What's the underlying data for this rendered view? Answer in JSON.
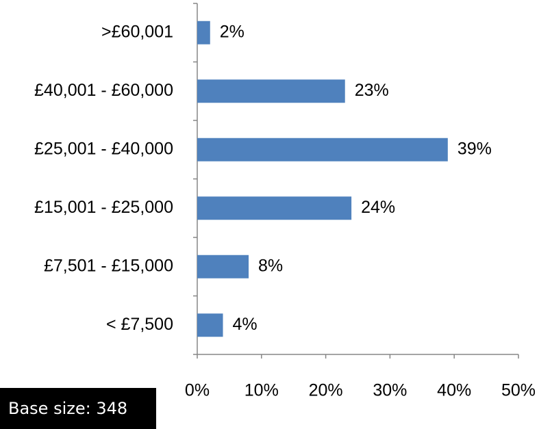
{
  "chart_data": {
    "type": "barh",
    "categories": [
      ">£60,001",
      "£40,001 - £60,000",
      "£25,001 - £40,000",
      "£15,001 - £25,000",
      "£7,501 - £15,000",
      "< £7,500"
    ],
    "values": [
      2,
      23,
      39,
      24,
      8,
      4
    ],
    "value_labels": [
      "2%",
      "23%",
      "39%",
      "24%",
      "8%",
      "4%"
    ],
    "color": "#4f81bd",
    "xlim": [
      0,
      50
    ],
    "xticks": [
      {
        "value": 0,
        "label": "0%"
      },
      {
        "value": 10,
        "label": "10%"
      },
      {
        "value": 20,
        "label": "20%"
      },
      {
        "value": 30,
        "label": "30%"
      },
      {
        "value": 40,
        "label": "40%"
      },
      {
        "value": 50,
        "label": "50%"
      }
    ],
    "grid": false,
    "annotation": "Base size:  348"
  }
}
